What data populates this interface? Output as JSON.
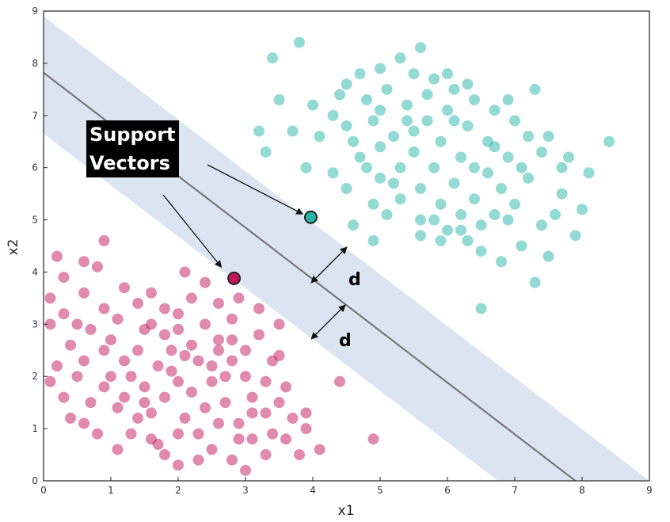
{
  "chart_data": {
    "type": "scatter",
    "xlabel": "x1",
    "ylabel": "x2",
    "xlim": [
      0,
      9
    ],
    "ylim": [
      0,
      9
    ],
    "xticks": [
      "0",
      "1",
      "2",
      "3",
      "4",
      "5",
      "6",
      "7",
      "8",
      "9"
    ],
    "yticks": [
      "0",
      "1",
      "2",
      "3",
      "4",
      "5",
      "6",
      "7",
      "8",
      "9"
    ],
    "grid": false,
    "colors": {
      "class_a": "#c2185b",
      "class_b": "#26b5a8",
      "margin_band": "#dbe5f2",
      "boundary": "#777777"
    },
    "decision_boundary": {
      "x": [
        0,
        7.9
      ],
      "y": [
        7.82,
        0
      ]
    },
    "margin_band": {
      "upper": {
        "x": [
          0,
          9
        ],
        "y": [
          8.9,
          0
        ]
      },
      "lower": {
        "x": [
          0,
          6.75
        ],
        "y": [
          6.65,
          0
        ]
      }
    },
    "support_vectors": [
      {
        "x": 3.97,
        "y": 5.05,
        "class": "class_b"
      },
      {
        "x": 2.83,
        "y": 3.88,
        "class": "class_a"
      }
    ],
    "annotations": {
      "callout_line1": "Support",
      "callout_line2": "Vectors",
      "margin_label_top": "d",
      "margin_label_bottom": "d"
    },
    "series": [
      {
        "class": "class_a",
        "points": [
          [
            0.2,
            4.3
          ],
          [
            0.6,
            4.2
          ],
          [
            0.9,
            4.6
          ],
          [
            0.8,
            4.1
          ],
          [
            0.3,
            3.9
          ],
          [
            0.6,
            3.6
          ],
          [
            0.1,
            3.5
          ],
          [
            0.3,
            3.2
          ],
          [
            0.1,
            3.0
          ],
          [
            0.4,
            2.6
          ],
          [
            0.2,
            2.2
          ],
          [
            0.1,
            1.9
          ],
          [
            0.3,
            1.6
          ],
          [
            0.6,
            1.1
          ],
          [
            0.8,
            0.9
          ],
          [
            1.1,
            0.6
          ],
          [
            0.7,
            2.9
          ],
          [
            0.9,
            3.3
          ],
          [
            1.2,
            3.7
          ],
          [
            1.1,
            3.1
          ],
          [
            0.9,
            2.5
          ],
          [
            1.0,
            2.0
          ],
          [
            1.2,
            1.6
          ],
          [
            1.4,
            1.2
          ],
          [
            1.6,
            0.8
          ],
          [
            1.8,
            0.5
          ],
          [
            2.0,
            0.3
          ],
          [
            1.4,
            3.4
          ],
          [
            1.6,
            3.0
          ],
          [
            1.8,
            3.3
          ],
          [
            2.0,
            2.9
          ],
          [
            1.9,
            2.5
          ],
          [
            1.7,
            2.2
          ],
          [
            1.5,
            1.8
          ],
          [
            1.8,
            1.6
          ],
          [
            2.1,
            1.2
          ],
          [
            2.3,
            0.9
          ],
          [
            2.5,
            0.6
          ],
          [
            2.8,
            0.4
          ],
          [
            2.2,
            3.5
          ],
          [
            2.4,
            3.0
          ],
          [
            2.6,
            2.7
          ],
          [
            2.3,
            2.3
          ],
          [
            2.5,
            1.9
          ],
          [
            2.7,
            1.5
          ],
          [
            2.9,
            1.1
          ],
          [
            3.1,
            0.8
          ],
          [
            3.3,
            0.5
          ],
          [
            2.8,
            2.3
          ],
          [
            3.0,
            2.0
          ],
          [
            3.1,
            1.6
          ],
          [
            3.3,
            1.3
          ],
          [
            3.4,
            0.9
          ],
          [
            3.5,
            2.4
          ],
          [
            3.6,
            1.8
          ],
          [
            3.7,
            1.2
          ],
          [
            3.8,
            0.5
          ],
          [
            3.9,
            1.0
          ],
          [
            4.1,
            0.6
          ],
          [
            3.2,
            2.8
          ],
          [
            3.4,
            2.3
          ],
          [
            3.2,
            3.3
          ],
          [
            2.8,
            3.1
          ],
          [
            2.6,
            3.4
          ],
          [
            2.4,
            3.8
          ],
          [
            2.1,
            4.0
          ],
          [
            1.4,
            2.5
          ],
          [
            1.3,
            2.0
          ],
          [
            1.1,
            1.4
          ],
          [
            1.0,
            2.7
          ],
          [
            0.5,
            3.0
          ],
          [
            0.7,
            1.5
          ],
          [
            0.5,
            2.0
          ],
          [
            0.9,
            1.8
          ],
          [
            1.6,
            1.3
          ],
          [
            2.0,
            1.9
          ],
          [
            2.2,
            1.7
          ],
          [
            2.4,
            1.4
          ],
          [
            2.6,
            1.1
          ],
          [
            2.0,
            0.9
          ],
          [
            1.7,
            0.7
          ],
          [
            1.5,
            2.9
          ],
          [
            2.2,
            2.6
          ],
          [
            2.8,
            2.7
          ],
          [
            3.0,
            2.5
          ],
          [
            3.5,
            1.5
          ],
          [
            3.3,
            1.9
          ],
          [
            4.4,
            1.9
          ],
          [
            4.9,
            0.8
          ],
          [
            3.0,
            0.2
          ],
          [
            3.6,
            0.8
          ],
          [
            1.9,
            2.1
          ],
          [
            1.2,
            2.3
          ],
          [
            1.8,
            2.8
          ],
          [
            2.5,
            2.2
          ],
          [
            2.9,
            3.5
          ],
          [
            1.6,
            3.6
          ],
          [
            0.4,
            1.2
          ],
          [
            2.3,
            0.4
          ],
          [
            3.9,
            1.3
          ],
          [
            3.5,
            3.0
          ],
          [
            2.7,
            2.0
          ],
          [
            1.3,
            0.9
          ],
          [
            2.0,
            3.2
          ],
          [
            2.6,
            2.5
          ],
          [
            3.1,
            1.3
          ],
          [
            1.5,
            1.5
          ],
          [
            2.9,
            0.8
          ],
          [
            0.6,
            2.3
          ],
          [
            2.1,
            2.4
          ]
        ]
      },
      {
        "class": "class_b",
        "points": [
          [
            3.4,
            8.1
          ],
          [
            3.8,
            8.4
          ],
          [
            4.0,
            7.2
          ],
          [
            3.5,
            7.3
          ],
          [
            3.7,
            6.7
          ],
          [
            3.2,
            6.7
          ],
          [
            3.3,
            6.3
          ],
          [
            3.9,
            6.0
          ],
          [
            4.1,
            6.6
          ],
          [
            4.3,
            7.0
          ],
          [
            4.5,
            7.6
          ],
          [
            4.8,
            7.3
          ],
          [
            5.0,
            7.9
          ],
          [
            5.3,
            8.1
          ],
          [
            5.6,
            8.3
          ],
          [
            5.8,
            7.7
          ],
          [
            6.1,
            7.5
          ],
          [
            6.4,
            7.3
          ],
          [
            6.7,
            7.1
          ],
          [
            7.0,
            6.9
          ],
          [
            7.3,
            7.5
          ],
          [
            7.5,
            6.6
          ],
          [
            7.8,
            6.2
          ],
          [
            8.1,
            5.9
          ],
          [
            8.4,
            6.5
          ],
          [
            8.0,
            5.2
          ],
          [
            7.7,
            5.5
          ],
          [
            7.4,
            4.9
          ],
          [
            7.1,
            4.5
          ],
          [
            6.8,
            4.2
          ],
          [
            6.5,
            4.4
          ],
          [
            6.2,
            4.8
          ],
          [
            5.9,
            4.6
          ],
          [
            5.6,
            5.0
          ],
          [
            5.3,
            5.4
          ],
          [
            5.0,
            5.8
          ],
          [
            4.7,
            6.2
          ],
          [
            4.5,
            5.6
          ],
          [
            4.3,
            5.9
          ],
          [
            4.6,
            6.5
          ],
          [
            4.9,
            6.9
          ],
          [
            5.2,
            6.6
          ],
          [
            5.5,
            6.3
          ],
          [
            5.8,
            6.0
          ],
          [
            6.1,
            5.7
          ],
          [
            6.4,
            5.4
          ],
          [
            6.7,
            5.1
          ],
          [
            7.0,
            5.3
          ],
          [
            7.2,
            5.8
          ],
          [
            6.9,
            6.2
          ],
          [
            6.6,
            6.5
          ],
          [
            6.3,
            6.8
          ],
          [
            6.0,
            7.1
          ],
          [
            5.7,
            6.9
          ],
          [
            5.4,
            7.2
          ],
          [
            5.1,
            7.5
          ],
          [
            4.8,
            6.0
          ],
          [
            5.0,
            6.4
          ],
          [
            5.3,
            6.0
          ],
          [
            5.6,
            5.6
          ],
          [
            5.9,
            5.3
          ],
          [
            6.2,
            5.1
          ],
          [
            6.5,
            4.9
          ],
          [
            6.8,
            5.6
          ],
          [
            7.1,
            6.0
          ],
          [
            7.4,
            6.3
          ],
          [
            7.6,
            5.1
          ],
          [
            7.9,
            4.7
          ],
          [
            7.5,
            4.3
          ],
          [
            7.3,
            3.8
          ],
          [
            6.5,
            3.3
          ],
          [
            4.9,
            4.6
          ],
          [
            4.6,
            4.9
          ],
          [
            5.1,
            5.1
          ],
          [
            5.7,
            7.4
          ],
          [
            6.3,
            7.6
          ],
          [
            6.9,
            7.3
          ],
          [
            5.5,
            7.8
          ],
          [
            4.4,
            7.4
          ],
          [
            4.7,
            7.8
          ],
          [
            5.9,
            6.5
          ],
          [
            6.2,
            6.2
          ],
          [
            6.6,
            5.9
          ],
          [
            5.2,
            5.7
          ],
          [
            5.4,
            6.9
          ],
          [
            6.0,
            4.8
          ],
          [
            6.4,
            6.0
          ],
          [
            5.8,
            5.0
          ],
          [
            6.9,
            5.0
          ],
          [
            7.7,
            6.0
          ],
          [
            6.1,
            6.9
          ],
          [
            5.5,
            6.7
          ],
          [
            4.5,
            6.8
          ],
          [
            5.0,
            7.1
          ],
          [
            6.7,
            6.4
          ],
          [
            7.2,
            6.6
          ],
          [
            5.6,
            4.7
          ],
          [
            6.3,
            4.6
          ],
          [
            4.9,
            5.3
          ],
          [
            6.0,
            7.8
          ]
        ]
      }
    ]
  }
}
